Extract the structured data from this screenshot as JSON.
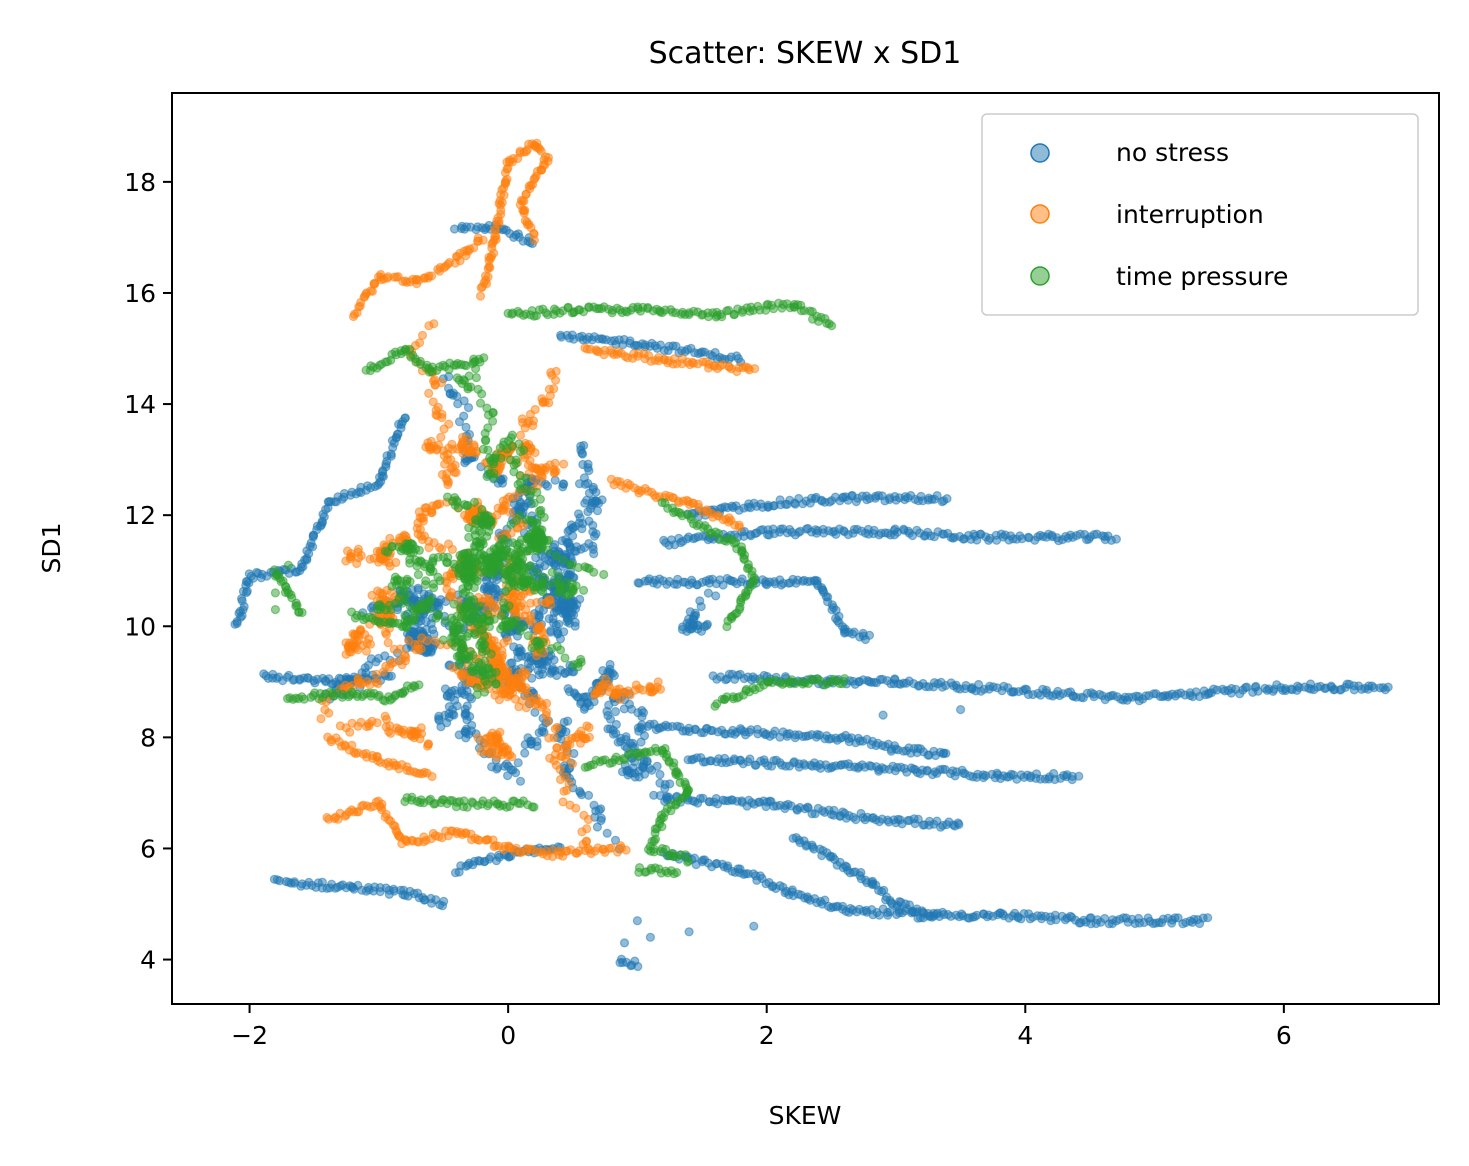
{
  "chart_data": {
    "type": "scatter",
    "title": "Scatter: SKEW x SD1",
    "xlabel": "SKEW",
    "ylabel": "SD1",
    "xlim": [
      -2.6,
      7.2
    ],
    "ylim": [
      3.2,
      19.6
    ],
    "xticks": [
      -2,
      0,
      2,
      4,
      6
    ],
    "xtick_labels": [
      "−2",
      "0",
      "2",
      "4",
      "6"
    ],
    "yticks": [
      4,
      6,
      8,
      10,
      12,
      14,
      16,
      18
    ],
    "ytick_labels": [
      "4",
      "6",
      "8",
      "10",
      "12",
      "14",
      "16",
      "18"
    ],
    "grid": false,
    "legend_position": "upper right",
    "series": [
      {
        "name": "no stress",
        "color": "#1f77b4",
        "clusters": [
          {
            "center": [
              -0.2,
              10.5
            ],
            "spread": [
              0.9,
              2.6
            ],
            "n": 700
          },
          {
            "center": [
              0.8,
              9.5
            ],
            "spread": [
              0.9,
              2.2
            ],
            "n": 350
          }
        ],
        "traces": [
          [
            [
              -2.1,
              10.0
            ],
            [
              -2.0,
              10.9
            ],
            [
              -1.6,
              11.0
            ],
            [
              -1.4,
              12.2
            ],
            [
              -1.0,
              12.6
            ],
            [
              -0.8,
              13.8
            ]
          ],
          [
            [
              -1.9,
              9.1
            ],
            [
              -1.4,
              9.0
            ],
            [
              -0.9,
              9.1
            ]
          ],
          [
            [
              -1.8,
              5.4
            ],
            [
              -1.2,
              5.3
            ],
            [
              -0.8,
              5.2
            ],
            [
              -0.5,
              5.0
            ]
          ],
          [
            [
              -0.4,
              5.6
            ],
            [
              0.0,
              5.9
            ],
            [
              0.4,
              6.0
            ]
          ],
          [
            [
              -0.4,
              17.2
            ],
            [
              -0.1,
              17.2
            ],
            [
              0.2,
              16.9
            ]
          ],
          [
            [
              0.4,
              15.2
            ],
            [
              1.0,
              15.1
            ],
            [
              1.8,
              14.8
            ]
          ],
          [
            [
              1.4,
              12.0
            ],
            [
              2.0,
              12.2
            ],
            [
              2.6,
              12.3
            ],
            [
              3.4,
              12.3
            ]
          ],
          [
            [
              1.2,
              11.5
            ],
            [
              2.0,
              11.7
            ],
            [
              3.0,
              11.7
            ],
            [
              3.6,
              11.6
            ],
            [
              4.7,
              11.6
            ]
          ],
          [
            [
              1.0,
              10.8
            ],
            [
              2.0,
              10.8
            ],
            [
              2.4,
              10.8
            ],
            [
              2.6,
              9.9
            ],
            [
              2.8,
              9.8
            ]
          ],
          [
            [
              1.6,
              9.1
            ],
            [
              2.5,
              9.0
            ],
            [
              3.0,
              9.0
            ],
            [
              3.6,
              8.9
            ],
            [
              4.2,
              8.8
            ],
            [
              4.8,
              8.7
            ],
            [
              5.4,
              8.8
            ],
            [
              6.0,
              8.9
            ],
            [
              6.4,
              8.9
            ],
            [
              6.8,
              8.9
            ]
          ],
          [
            [
              1.0,
              8.2
            ],
            [
              1.8,
              8.1
            ],
            [
              2.6,
              8.0
            ],
            [
              3.0,
              7.8
            ],
            [
              3.4,
              7.7
            ]
          ],
          [
            [
              1.4,
              7.6
            ],
            [
              2.4,
              7.5
            ],
            [
              3.2,
              7.4
            ],
            [
              3.8,
              7.3
            ],
            [
              4.4,
              7.3
            ]
          ],
          [
            [
              1.2,
              6.9
            ],
            [
              2.0,
              6.8
            ],
            [
              2.6,
              6.6
            ],
            [
              3.5,
              6.4
            ]
          ],
          [
            [
              1.2,
              5.9
            ],
            [
              1.8,
              5.6
            ],
            [
              2.2,
              5.2
            ],
            [
              2.6,
              4.9
            ],
            [
              3.2,
              4.8
            ],
            [
              3.8,
              4.8
            ],
            [
              4.5,
              4.7
            ],
            [
              5.4,
              4.7
            ]
          ],
          [
            [
              2.2,
              6.2
            ],
            [
              2.6,
              5.7
            ],
            [
              2.8,
              5.4
            ],
            [
              3.0,
              5.0
            ],
            [
              3.3,
              4.8
            ]
          ],
          [
            [
              0.85,
              4.0
            ],
            [
              1.0,
              3.9
            ]
          ]
        ],
        "points": [
          [
            1.0,
            4.7
          ],
          [
            1.1,
            4.4
          ],
          [
            1.4,
            4.5
          ],
          [
            1.9,
            4.6
          ],
          [
            2.9,
            8.4
          ],
          [
            3.5,
            8.5
          ],
          [
            0.9,
            4.3
          ]
        ]
      },
      {
        "name": "interruption",
        "color": "#ff7f0e",
        "clusters": [
          {
            "center": [
              -0.3,
              11.5
            ],
            "spread": [
              0.7,
              2.7
            ],
            "n": 650
          },
          {
            "center": [
              0.2,
              8.5
            ],
            "spread": [
              0.8,
              1.6
            ],
            "n": 300
          }
        ],
        "traces": [
          [
            [
              -0.2,
              16.0
            ],
            [
              -0.1,
              17.0
            ],
            [
              0.0,
              18.3
            ],
            [
              0.2,
              18.7
            ],
            [
              0.3,
              18.4
            ],
            [
              0.1,
              17.6
            ],
            [
              0.2,
              17.0
            ]
          ],
          [
            [
              -1.2,
              15.6
            ],
            [
              -1.0,
              16.3
            ],
            [
              -0.7,
              16.2
            ],
            [
              -0.4,
              16.6
            ],
            [
              -0.2,
              17.0
            ]
          ],
          [
            [
              0.6,
              15.0
            ],
            [
              1.2,
              14.8
            ],
            [
              1.9,
              14.6
            ]
          ],
          [
            [
              0.8,
              12.6
            ],
            [
              1.4,
              12.2
            ],
            [
              1.8,
              11.8
            ]
          ],
          [
            [
              -1.4,
              6.5
            ],
            [
              -1.0,
              6.8
            ],
            [
              -0.8,
              6.1
            ],
            [
              -0.4,
              6.3
            ],
            [
              0.0,
              6.0
            ],
            [
              0.4,
              5.9
            ],
            [
              0.9,
              6.0
            ]
          ],
          [
            [
              -1.4,
              8.0
            ],
            [
              -1.0,
              7.6
            ],
            [
              -0.6,
              7.3
            ]
          ]
        ],
        "points": []
      },
      {
        "name": "time pressure",
        "color": "#2ca02c",
        "clusters": [
          {
            "center": [
              -0.2,
              11.0
            ],
            "spread": [
              0.6,
              2.3
            ],
            "n": 700
          }
        ],
        "traces": [
          [
            [
              -1.2,
              10.2
            ],
            [
              -0.8,
              10.0
            ],
            [
              -0.6,
              10.5
            ]
          ],
          [
            [
              -1.7,
              8.7
            ],
            [
              -1.2,
              8.8
            ],
            [
              -0.9,
              8.7
            ],
            [
              -0.7,
              9.0
            ]
          ],
          [
            [
              -1.1,
              14.6
            ],
            [
              -0.8,
              15.0
            ],
            [
              -0.6,
              14.6
            ],
            [
              -0.2,
              14.8
            ]
          ],
          [
            [
              0.0,
              15.6
            ],
            [
              0.5,
              15.7
            ],
            [
              1.0,
              15.7
            ],
            [
              1.6,
              15.6
            ],
            [
              2.2,
              15.8
            ],
            [
              2.5,
              15.4
            ]
          ],
          [
            [
              1.6,
              8.6
            ],
            [
              2.0,
              9.0
            ],
            [
              2.6,
              9.0
            ]
          ],
          [
            [
              1.2,
              12.2
            ],
            [
              1.8,
              11.4
            ],
            [
              1.9,
              10.8
            ],
            [
              1.7,
              10.0
            ]
          ],
          [
            [
              0.6,
              7.5
            ],
            [
              1.2,
              7.8
            ],
            [
              1.4,
              7.0
            ],
            [
              1.2,
              6.6
            ],
            [
              1.1,
              6.0
            ],
            [
              1.4,
              5.8
            ]
          ],
          [
            [
              -0.8,
              6.9
            ],
            [
              -0.4,
              6.8
            ],
            [
              0.2,
              6.8
            ]
          ],
          [
            [
              1.0,
              5.6
            ],
            [
              1.3,
              5.6
            ]
          ],
          [
            [
              -1.8,
              11.0
            ],
            [
              -1.6,
              10.2
            ]
          ]
        ],
        "points": [
          [
            -1.8,
            10.9
          ],
          [
            -1.8,
            10.6
          ],
          [
            -1.8,
            10.3
          ],
          [
            -1.7,
            11.1
          ]
        ]
      }
    ]
  }
}
